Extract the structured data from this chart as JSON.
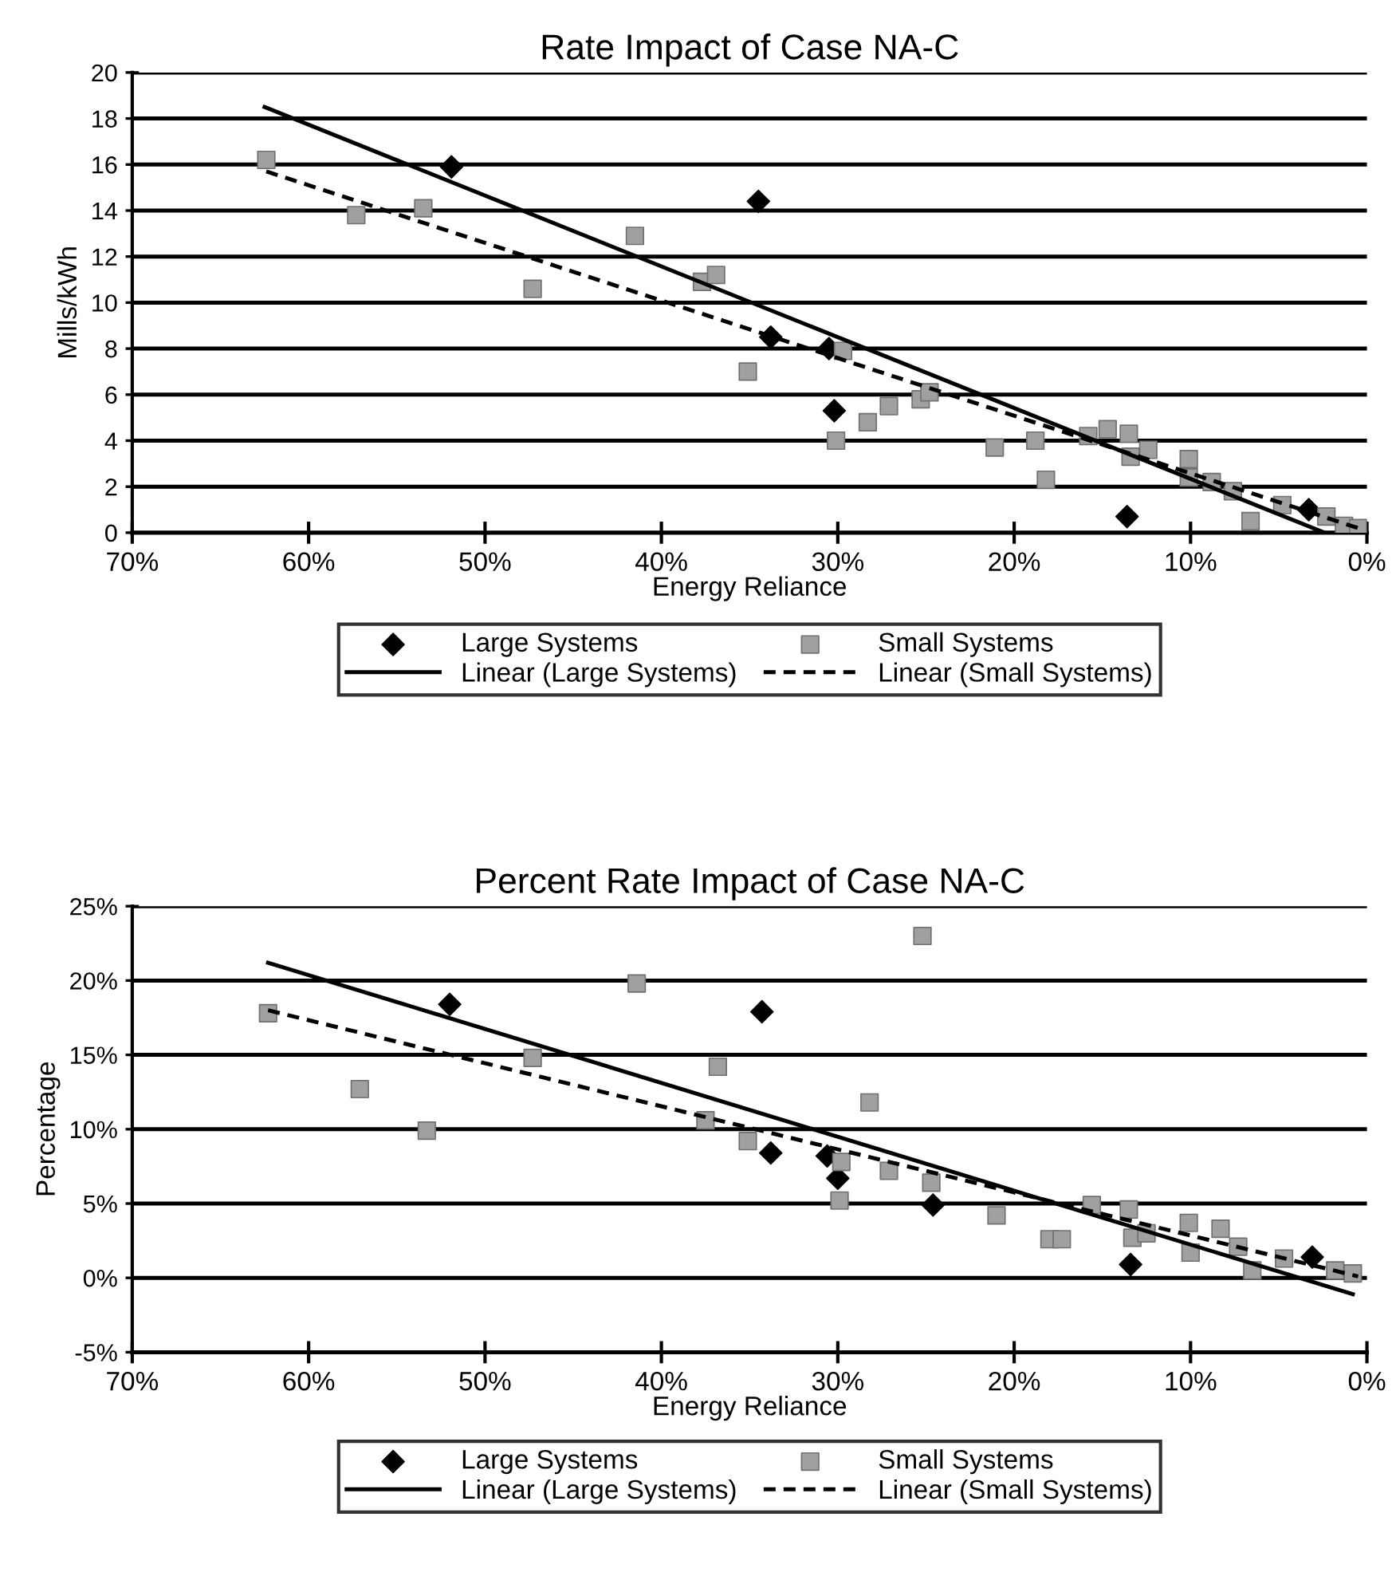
{
  "chart_data": [
    {
      "type": "scatter",
      "title": "Rate Impact of Case NA-C",
      "xlabel": "Energy Reliance",
      "ylabel": "Mills/kWh",
      "xlim": [
        70,
        0
      ],
      "xticks": [
        {
          "value": 70,
          "label": "70%"
        },
        {
          "value": 60,
          "label": "60%"
        },
        {
          "value": 50,
          "label": "50%"
        },
        {
          "value": 40,
          "label": "40%"
        },
        {
          "value": 30,
          "label": "30%"
        },
        {
          "value": 20,
          "label": "20%"
        },
        {
          "value": 10,
          "label": "10%"
        },
        {
          "value": 0,
          "label": "0%"
        }
      ],
      "ylim": [
        0,
        20
      ],
      "yticks": [
        0,
        2,
        4,
        6,
        8,
        10,
        12,
        14,
        16,
        18,
        20
      ],
      "grid": "y",
      "legend": "bottom",
      "series": [
        {
          "name": "Large Systems",
          "marker": "diamond",
          "color": "#000000",
          "x": [
            51.9,
            34.5,
            33.8,
            30.5,
            30.2,
            13.6,
            3.3
          ],
          "values": [
            15.9,
            14.4,
            8.5,
            8.0,
            5.3,
            0.7,
            1.0
          ]
        },
        {
          "name": "Small Systems",
          "marker": "square",
          "color": "#a0a0a0",
          "x": [
            62.4,
            57.3,
            53.5,
            47.3,
            41.5,
            37.7,
            36.9,
            35.1,
            29.7,
            30.1,
            28.3,
            27.1,
            25.3,
            24.8,
            21.1,
            18.8,
            18.2,
            15.8,
            14.7,
            13.5,
            13.4,
            12.4,
            10.1,
            10.1,
            8.8,
            7.6,
            6.6,
            4.8,
            2.3,
            1.3,
            0.5
          ],
          "values": [
            16.2,
            13.8,
            14.1,
            10.6,
            12.9,
            10.9,
            11.2,
            7.0,
            7.9,
            4.0,
            4.8,
            5.5,
            5.8,
            6.1,
            3.7,
            4.0,
            2.3,
            4.2,
            4.5,
            4.3,
            3.3,
            3.6,
            3.2,
            2.4,
            2.2,
            1.8,
            0.5,
            1.2,
            0.7,
            0.3,
            0.2
          ]
        },
        {
          "name": "Linear (Large Systems)",
          "type": "line",
          "marker": "none",
          "line_style": "solid",
          "color": "#000000",
          "x": [
            62.5,
            2.4
          ],
          "values": [
            18.5,
            0
          ]
        },
        {
          "name": "Linear (Small Systems)",
          "type": "line",
          "marker": "none",
          "line_style": "dashed",
          "color": "#000000",
          "x": [
            62.4,
            0.5
          ],
          "values": [
            15.7,
            0.2
          ]
        }
      ]
    },
    {
      "type": "scatter",
      "title": "Percent Rate Impact of Case NA-C",
      "xlabel": "Energy Reliance",
      "ylabel": "Percentage",
      "xlim": [
        70,
        0
      ],
      "xticks": [
        {
          "value": 70,
          "label": "70%"
        },
        {
          "value": 60,
          "label": "60%"
        },
        {
          "value": 50,
          "label": "50%"
        },
        {
          "value": 40,
          "label": "40%"
        },
        {
          "value": 30,
          "label": "30%"
        },
        {
          "value": 20,
          "label": "20%"
        },
        {
          "value": 10,
          "label": "10%"
        },
        {
          "value": 0,
          "label": "0%"
        }
      ],
      "ylim": [
        -5,
        25
      ],
      "yticks": [
        {
          "value": -5,
          "label": "-5%"
        },
        {
          "value": 0,
          "label": "0%"
        },
        {
          "value": 5,
          "label": "5%"
        },
        {
          "value": 10,
          "label": "10%"
        },
        {
          "value": 15,
          "label": "15%"
        },
        {
          "value": 20,
          "label": "20%"
        },
        {
          "value": 25,
          "label": "25%"
        }
      ],
      "grid": "y",
      "legend": "bottom",
      "series": [
        {
          "name": "Large Systems",
          "marker": "diamond",
          "color": "#000000",
          "x": [
            52.0,
            34.3,
            33.8,
            30.6,
            30.0,
            24.6,
            13.4,
            3.1
          ],
          "values": [
            18.4,
            17.9,
            8.4,
            8.2,
            6.7,
            4.9,
            0.9,
            1.4
          ]
        },
        {
          "name": "Small Systems",
          "marker": "square",
          "color": "#a0a0a0",
          "x": [
            62.3,
            57.1,
            53.3,
            41.4,
            47.3,
            36.8,
            37.5,
            35.1,
            29.8,
            29.9,
            28.2,
            27.1,
            24.7,
            25.2,
            21.0,
            18.0,
            17.3,
            15.6,
            13.5,
            13.3,
            12.5,
            10.1,
            10.0,
            8.3,
            7.3,
            6.5,
            4.7,
            1.8,
            0.8
          ],
          "values": [
            17.8,
            12.7,
            9.9,
            19.8,
            14.8,
            14.2,
            10.6,
            9.2,
            7.8,
            5.2,
            11.8,
            7.2,
            6.4,
            23.0,
            4.2,
            2.6,
            2.6,
            4.9,
            4.6,
            2.7,
            3.0,
            3.7,
            1.7,
            3.3,
            2.1,
            0.5,
            1.3,
            0.5,
            0.3
          ]
        },
        {
          "name": "Linear (Large Systems)",
          "type": "line",
          "marker": "none",
          "line_style": "solid",
          "color": "#000000",
          "x": [
            62.3,
            0.8
          ],
          "values": [
            21.2,
            -1.1
          ]
        },
        {
          "name": "Linear (Small Systems)",
          "type": "line",
          "marker": "none",
          "line_style": "dashed",
          "color": "#000000",
          "x": [
            62.3,
            0.5
          ],
          "values": [
            18.0,
            0.1
          ]
        }
      ]
    }
  ]
}
